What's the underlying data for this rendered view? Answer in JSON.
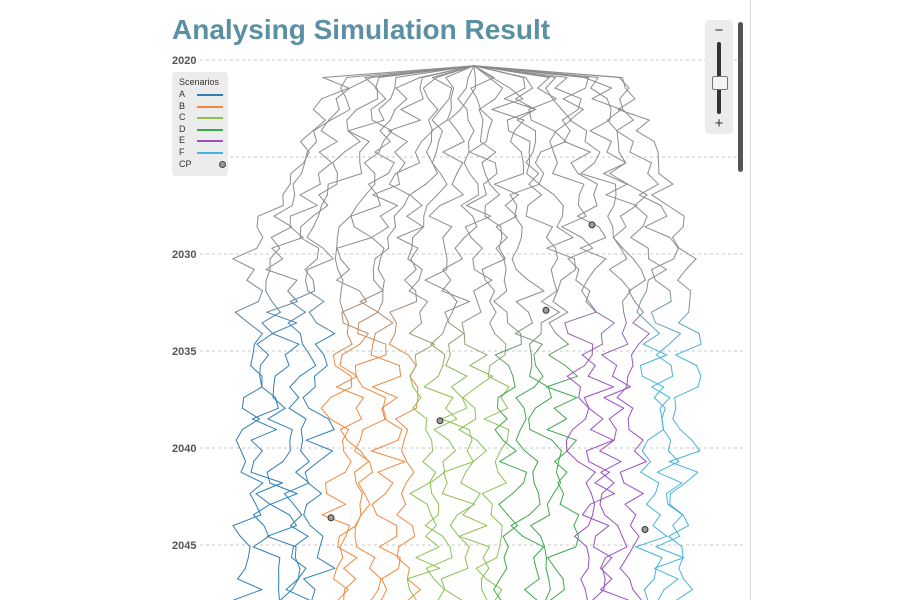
{
  "title": "Analysing Simulation Result",
  "legend": {
    "title": "Scenarios",
    "items": [
      {
        "label": "A",
        "color": "#2e7fb8"
      },
      {
        "label": "B",
        "color": "#f0883e"
      },
      {
        "label": "C",
        "color": "#8cc152"
      },
      {
        "label": "D",
        "color": "#3aa94a"
      },
      {
        "label": "E",
        "color": "#9b4fc2"
      },
      {
        "label": "F",
        "color": "#45b3dd"
      }
    ],
    "cp_label": "CP"
  },
  "zoom": {
    "minus_label": "−",
    "plus_label": "+",
    "level": 0.7
  },
  "chart_data": {
    "type": "line",
    "title": "Analysing Simulation Result",
    "y_axis": {
      "ticks": [
        2020,
        2025,
        2030,
        2035,
        2040,
        2045
      ],
      "range": [
        2020,
        2047.8
      ],
      "grid": true
    },
    "trunk_color": "#8c8c8c",
    "series": [
      {
        "name": "A",
        "color": "#2e7fb8",
        "branch_year": 2033.5,
        "lanes": 5
      },
      {
        "name": "B",
        "color": "#f0883e",
        "branch_year": 2034.5,
        "lanes": 5
      },
      {
        "name": "C",
        "color": "#8cc152",
        "branch_year": 2035.5,
        "lanes": 5
      },
      {
        "name": "D",
        "color": "#3aa94a",
        "branch_year": 2036,
        "lanes": 4
      },
      {
        "name": "E",
        "color": "#9b4fc2",
        "branch_year": 2034.5,
        "lanes": 4
      },
      {
        "name": "F",
        "color": "#45b3dd",
        "branch_year": 2034,
        "lanes": 3
      }
    ],
    "checkpoints": [
      {
        "year": 2028.5
      },
      {
        "year": 2032.9
      },
      {
        "year": 2038.6
      },
      {
        "year": 2044.2
      },
      {
        "year": 2043.6
      }
    ]
  }
}
